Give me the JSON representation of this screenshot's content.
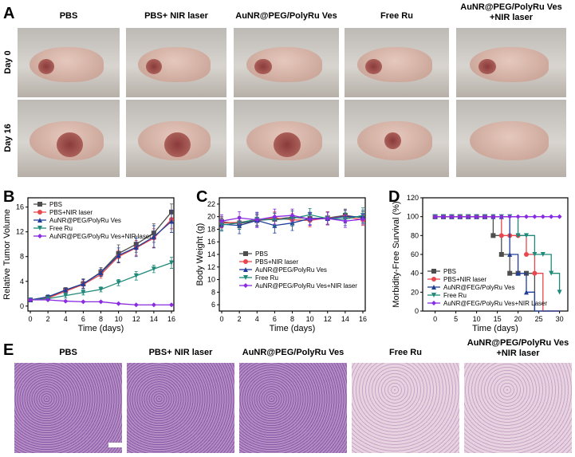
{
  "panels": {
    "A": "A",
    "B": "B",
    "C": "C",
    "D": "D",
    "E": "E"
  },
  "groups": [
    "PBS",
    "PBS+ NIR laser",
    "AuNR@PEG/PolyRu Ves",
    "Free Ru",
    "AuNR@PEG/PolyRu Ves +NIR laser"
  ],
  "rows": [
    "Day 0",
    "Day 16"
  ],
  "colors": {
    "PBS": "#4d4d4d",
    "PBS+NIR": "#e8474d",
    "AuNR": "#1f3e9a",
    "FreeRu": "#1f8a7a",
    "Combo": "#8a2be2"
  },
  "chart_data": [
    {
      "type": "line",
      "panel": "B",
      "xlabel": "Time (days)",
      "ylabel": "Relative Tumor Volume",
      "xlim": [
        0,
        16
      ],
      "ylim": [
        -0.8,
        17.5
      ],
      "xticks": [
        0,
        2,
        4,
        6,
        8,
        10,
        12,
        14,
        16
      ],
      "yticks": [
        0,
        4,
        8,
        12,
        16
      ],
      "legend": "top-left",
      "x": [
        0,
        2,
        4,
        6,
        8,
        10,
        12,
        14,
        16
      ],
      "series": [
        {
          "name": "PBS",
          "values": [
            1,
            1.4,
            2.6,
            3.6,
            5.5,
            8.5,
            10,
            11.8,
            15.2
          ],
          "err": [
            0.1,
            0.3,
            0.4,
            0.8,
            0.7,
            1.4,
            1.3,
            1.5,
            1.3
          ],
          "marker": "square",
          "color": "#4d4d4d"
        },
        {
          "name": "PBS+NIR laser",
          "values": [
            1,
            1.3,
            2.4,
            3.5,
            5.1,
            8.0,
            9.4,
            11.0,
            14.0
          ],
          "err": [
            0.1,
            0.2,
            0.4,
            0.6,
            0.6,
            1.0,
            1.2,
            1.5,
            1.5
          ],
          "marker": "circle",
          "color": "#e8474d"
        },
        {
          "name": "AuNR@PEG/PolyRu Ves",
          "values": [
            1,
            1.5,
            2.6,
            3.6,
            5.4,
            8.2,
            9.5,
            11.2,
            13.7
          ],
          "err": [
            0.1,
            0.3,
            0.3,
            0.7,
            0.6,
            1.2,
            1.5,
            1.8,
            1.8
          ],
          "marker": "triangle",
          "color": "#1f3e9a"
        },
        {
          "name": "Free Ru",
          "values": [
            1,
            1.2,
            1.7,
            2.2,
            2.7,
            3.8,
            4.9,
            6.0,
            7.0
          ],
          "err": [
            0.1,
            0.2,
            0.4,
            0.4,
            0.4,
            0.5,
            0.7,
            0.6,
            0.9
          ],
          "marker": "triangle-down",
          "color": "#1f8a7a"
        },
        {
          "name": "AuNR@PEG/PolyRu Ves+NIR laser",
          "values": [
            1,
            1.0,
            0.8,
            0.7,
            0.7,
            0.4,
            0.2,
            0.2,
            0.2
          ],
          "err": [
            0.1,
            0.1,
            0.1,
            0.1,
            0.1,
            0.1,
            0.05,
            0.05,
            0.05
          ],
          "marker": "diamond",
          "color": "#8a2be2"
        }
      ]
    },
    {
      "type": "line",
      "panel": "C",
      "xlabel": "Time (days)",
      "ylabel": "Body Weight (g)",
      "xlim": [
        0,
        16
      ],
      "ylim": [
        5,
        23
      ],
      "xticks": [
        0,
        2,
        4,
        6,
        8,
        10,
        12,
        14,
        16
      ],
      "yticks": [
        6,
        8,
        10,
        12,
        14,
        16,
        18,
        20,
        22
      ],
      "legend": "center",
      "x": [
        0,
        2,
        4,
        6,
        8,
        10,
        12,
        14,
        16
      ],
      "series": [
        {
          "name": "PBS",
          "values": [
            19.2,
            18.9,
            19.4,
            19.6,
            19.9,
            19.7,
            19.8,
            20.2,
            19.8
          ],
          "err": [
            0.8,
            0.9,
            0.8,
            1.0,
            1.0,
            1.0,
            1.0,
            1.0,
            1.0
          ],
          "marker": "square",
          "color": "#4d4d4d"
        },
        {
          "name": "PBS+NIR laser",
          "values": [
            19.0,
            19.1,
            19.5,
            19.8,
            19.5,
            19.4,
            19.8,
            20.0,
            19.5
          ],
          "err": [
            0.8,
            0.9,
            0.9,
            1.0,
            1.0,
            1.0,
            1.0,
            1.0,
            0.9
          ],
          "marker": "circle",
          "color": "#e8474d"
        },
        {
          "name": "AuNR@PEG/PolyRu Ves",
          "values": [
            18.8,
            18.6,
            19.4,
            18.6,
            19.0,
            19.7,
            19.7,
            20.0,
            20.0
          ],
          "err": [
            0.9,
            1.3,
            1.0,
            1.2,
            1.2,
            1.0,
            1.0,
            1.0,
            1.0
          ],
          "marker": "triangle",
          "color": "#1f3e9a"
        },
        {
          "name": "Free Ru",
          "values": [
            18.7,
            19.0,
            19.6,
            19.5,
            19.7,
            20.3,
            19.7,
            19.6,
            20.2
          ],
          "err": [
            1.0,
            1.0,
            1.0,
            1.0,
            1.2,
            1.0,
            1.0,
            1.0,
            1.2
          ],
          "marker": "triangle-down",
          "color": "#1f8a7a"
        },
        {
          "name": "AuNR@PEG/PolyRu Ves+NIR laser",
          "values": [
            19.3,
            19.8,
            19.5,
            20.0,
            20.2,
            19.6,
            19.7,
            19.3,
            19.6
          ],
          "err": [
            1.0,
            1.0,
            1.2,
            1.2,
            1.0,
            1.0,
            1.0,
            1.0,
            0.8
          ],
          "marker": "diamond",
          "color": "#8a2be2"
        }
      ]
    },
    {
      "type": "step",
      "panel": "D",
      "xlabel": "Time (days)",
      "ylabel": "Morbidity-Free Survival (%)",
      "xlim": [
        -3,
        32
      ],
      "ylim": [
        0,
        120
      ],
      "xticks": [
        0,
        5,
        10,
        15,
        20,
        25,
        30
      ],
      "yticks": [
        0,
        20,
        40,
        60,
        80,
        100,
        120
      ],
      "legend": "bottom-left",
      "series": [
        {
          "name": "PBS",
          "x": [
            0,
            14,
            16,
            18,
            24
          ],
          "values": [
            100,
            80,
            60,
            40,
            0
          ],
          "marker": "square",
          "color": "#4d4d4d"
        },
        {
          "name": "PBS+NIR laser",
          "x": [
            0,
            16,
            22,
            24,
            26
          ],
          "values": [
            100,
            80,
            60,
            40,
            0
          ],
          "marker": "circle",
          "color": "#e8474d"
        },
        {
          "name": "AuNR@FEG/PolyRu Ves",
          "x": [
            0,
            18,
            20,
            22,
            24
          ],
          "values": [
            100,
            60,
            40,
            20,
            0
          ],
          "marker": "triangle",
          "color": "#1f3e9a"
        },
        {
          "name": "Free Ru",
          "x": [
            0,
            20,
            24,
            28,
            30
          ],
          "values": [
            100,
            80,
            60,
            40,
            20
          ],
          "marker": "triangle-down",
          "color": "#1f8a7a"
        },
        {
          "name": "AuNR@FEG/PolyRu Ves+NIR Laser",
          "x": [
            0,
            30
          ],
          "values": [
            100,
            100
          ],
          "marker": "diamond",
          "color": "#8a2be2"
        }
      ]
    }
  ]
}
